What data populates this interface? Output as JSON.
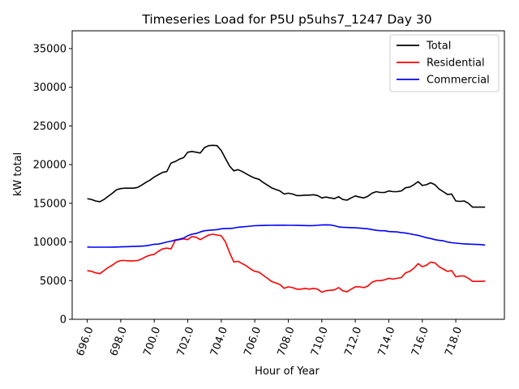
{
  "chart_data": {
    "type": "line",
    "title": "Timeseries Load for P5U p5uhs7_1247  Day 30",
    "xlabel": "Hour of Year",
    "ylabel": "kW total",
    "xlim": [
      695.1,
      720.9
    ],
    "ylim": [
      0,
      37300
    ],
    "xticks": [
      696,
      698,
      700,
      702,
      704,
      706,
      708,
      710,
      712,
      714,
      716,
      718
    ],
    "xtick_labels": [
      "696.0",
      "698.0",
      "700.0",
      "702.0",
      "704.0",
      "706.0",
      "708.0",
      "710.0",
      "712.0",
      "714.0",
      "716.0",
      "718.0"
    ],
    "yticks": [
      0,
      5000,
      10000,
      15000,
      20000,
      25000,
      30000,
      35000
    ],
    "ytick_labels": [
      "0",
      "5000",
      "10000",
      "15000",
      "20000",
      "25000",
      "30000",
      "35000"
    ],
    "legend_position": "upper right",
    "x": [
      696.0,
      696.25,
      696.5,
      696.75,
      697.0,
      697.25,
      697.5,
      697.75,
      698.0,
      698.25,
      698.5,
      698.75,
      699.0,
      699.25,
      699.5,
      699.75,
      700.0,
      700.25,
      700.5,
      700.75,
      701.0,
      701.25,
      701.5,
      701.75,
      702.0,
      702.25,
      702.5,
      702.75,
      703.0,
      703.25,
      703.5,
      703.75,
      704.0,
      704.25,
      704.5,
      704.75,
      705.0,
      705.25,
      705.5,
      705.75,
      706.0,
      706.25,
      706.5,
      706.75,
      707.0,
      707.25,
      707.5,
      707.75,
      708.0,
      708.25,
      708.5,
      708.75,
      709.0,
      709.25,
      709.5,
      709.75,
      710.0,
      710.25,
      710.5,
      710.75,
      711.0,
      711.25,
      711.5,
      711.75,
      712.0,
      712.25,
      712.5,
      712.75,
      713.0,
      713.25,
      713.5,
      713.75,
      714.0,
      714.25,
      714.5,
      714.75,
      715.0,
      715.25,
      715.5,
      715.75,
      716.0,
      716.25,
      716.5,
      716.75,
      717.0,
      717.25,
      717.5,
      717.75,
      718.0,
      718.25,
      718.5,
      718.75,
      719.0,
      719.25,
      719.5,
      719.75
    ],
    "series": [
      {
        "name": "Total",
        "color": "#000000",
        "values": [
          15600,
          15500,
          15300,
          15200,
          15500,
          15900,
          16300,
          16750,
          16900,
          16950,
          16950,
          16950,
          17050,
          17350,
          17700,
          18000,
          18400,
          18700,
          19000,
          19100,
          20200,
          20400,
          20700,
          20900,
          21600,
          21700,
          21600,
          21500,
          22200,
          22450,
          22500,
          22450,
          21800,
          20800,
          19800,
          19200,
          19350,
          19100,
          18800,
          18500,
          18250,
          18100,
          17700,
          17350,
          17000,
          16800,
          16600,
          16200,
          16300,
          16200,
          16000,
          16000,
          16050,
          16050,
          16100,
          16000,
          15700,
          15800,
          15700,
          15600,
          15850,
          15500,
          15400,
          15700,
          15950,
          15800,
          15700,
          15900,
          16300,
          16500,
          16400,
          16400,
          16600,
          16500,
          16500,
          16600,
          17000,
          17100,
          17400,
          17800,
          17300,
          17400,
          17650,
          17400,
          16850,
          16500,
          16150,
          16200,
          15300,
          15250,
          15300,
          15000,
          14500,
          14500,
          14500,
          14500
        ]
      },
      {
        "name": "Residential",
        "color": "#ff0000",
        "values": [
          6300,
          6200,
          6000,
          5900,
          6300,
          6700,
          7000,
          7400,
          7600,
          7600,
          7550,
          7550,
          7600,
          7800,
          8100,
          8300,
          8400,
          8800,
          9100,
          9200,
          9100,
          10200,
          10300,
          10400,
          10300,
          10700,
          10600,
          10300,
          10600,
          10900,
          11000,
          10900,
          10800,
          10000,
          8600,
          7400,
          7500,
          7200,
          6900,
          6500,
          6200,
          6100,
          5700,
          5300,
          4900,
          4700,
          4500,
          4000,
          4200,
          4100,
          3900,
          3900,
          4000,
          3900,
          4000,
          3900,
          3500,
          3700,
          3750,
          3800,
          4100,
          3700,
          3550,
          3900,
          4200,
          4200,
          4100,
          4300,
          4800,
          5000,
          5000,
          5100,
          5300,
          5200,
          5300,
          5400,
          6000,
          6200,
          6600,
          7200,
          6800,
          7000,
          7400,
          7300,
          6800,
          6500,
          6200,
          6300,
          5500,
          5600,
          5600,
          5300,
          4900,
          4900,
          4900,
          4950
        ]
      },
      {
        "name": "Commercial",
        "color": "#0000ff",
        "values": [
          9350,
          9330,
          9320,
          9320,
          9320,
          9330,
          9340,
          9350,
          9370,
          9390,
          9400,
          9420,
          9440,
          9460,
          9500,
          9600,
          9700,
          9720,
          9850,
          10000,
          10100,
          10250,
          10350,
          10500,
          10800,
          11000,
          11100,
          11300,
          11450,
          11500,
          11550,
          11600,
          11700,
          11750,
          11750,
          11800,
          11900,
          11950,
          12000,
          12050,
          12100,
          12120,
          12130,
          12140,
          12150,
          12160,
          12160,
          12160,
          12150,
          12150,
          12140,
          12130,
          12120,
          12110,
          12120,
          12150,
          12200,
          12220,
          12200,
          12100,
          11950,
          11900,
          11870,
          11850,
          11830,
          11800,
          11750,
          11700,
          11600,
          11500,
          11450,
          11450,
          11350,
          11330,
          11300,
          11200,
          11150,
          11050,
          10950,
          10850,
          10700,
          10550,
          10450,
          10300,
          10200,
          10150,
          10000,
          9900,
          9850,
          9800,
          9750,
          9720,
          9700,
          9680,
          9660,
          9600
        ]
      }
    ]
  }
}
